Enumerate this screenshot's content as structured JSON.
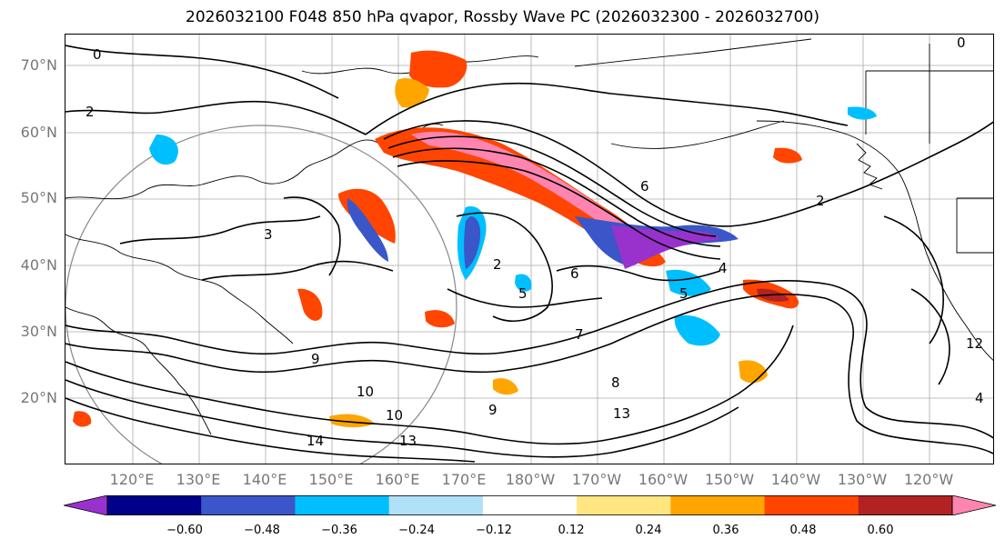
{
  "title": "2026032100 F048 850 hPa qvapor, Rossby Wave PC (2026032300 - 2026032700)",
  "map": {
    "lat_labels": [
      "70°N",
      "60°N",
      "50°N",
      "40°N",
      "30°N",
      "20°N"
    ],
    "lon_labels": [
      "120°E",
      "130°E",
      "140°E",
      "150°E",
      "160°E",
      "170°E",
      "180°W",
      "170°W",
      "160°W",
      "150°W",
      "140°W",
      "130°W",
      "120°W"
    ],
    "contour_labels": [
      "0",
      "2",
      "0",
      "2",
      "3",
      "6",
      "6",
      "4",
      "5",
      "7",
      "9",
      "8",
      "10",
      "13",
      "14",
      "13",
      "9",
      "10",
      "5",
      "4",
      "2",
      "12"
    ]
  },
  "colorbar": {
    "colors": [
      "#9932cc",
      "#00008b",
      "#3a56c9",
      "#00bfff",
      "#b0e0fa",
      "#ffffff",
      "#ffe680",
      "#ffa500",
      "#ff4500",
      "#b22222",
      "#ff85b0"
    ],
    "ticks": [
      "−0.60",
      "−0.48",
      "−0.36",
      "−0.24",
      "−0.12",
      "0.12",
      "0.24",
      "0.36",
      "0.48",
      "0.60"
    ]
  }
}
